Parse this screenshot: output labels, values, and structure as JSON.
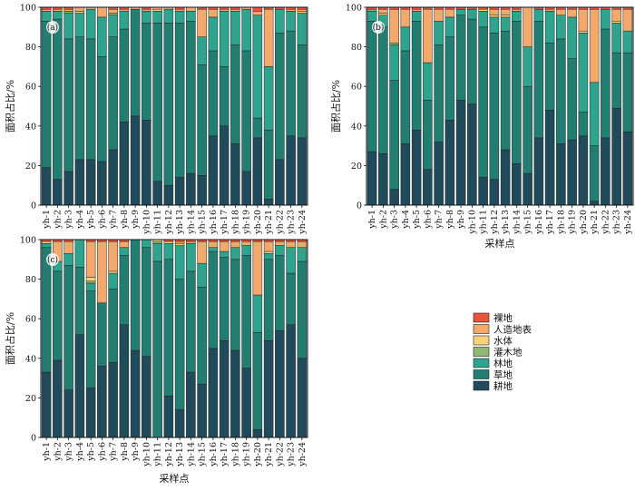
{
  "figure": {
    "panels_label": [
      "(a)",
      "(b)",
      "(c)"
    ]
  },
  "legend": {
    "items": [
      {
        "label": "裸地",
        "color": "#e8553a"
      },
      {
        "label": "人造地表",
        "color": "#f3a86c"
      },
      {
        "label": "水体",
        "color": "#f6d27a"
      },
      {
        "label": "灌木地",
        "color": "#8fb873"
      },
      {
        "label": "林地",
        "color": "#2ea38d"
      },
      {
        "label": "草地",
        "color": "#237e72"
      },
      {
        "label": "耕地",
        "color": "#1f4b5a"
      }
    ]
  },
  "chart_data": [
    {
      "type": "bar",
      "stacked": true,
      "panel": "(a)",
      "categories": [
        "yh-1",
        "yh-2",
        "yh-3",
        "yh-4",
        "yh-5",
        "yh-6",
        "yh-7",
        "yh-8",
        "yh-9",
        "yh-10",
        "yh-11",
        "yh-12",
        "yh-13",
        "yh-14",
        "yh-15",
        "yh-16",
        "yh-17",
        "yh-18",
        "yh-19",
        "yh-20",
        "yh-21",
        "yh-22",
        "yh-23",
        "yh-24"
      ],
      "ylabel": "面积占比/%",
      "xlabel": "",
      "ylim": [
        0,
        100
      ],
      "yticks": [
        0,
        20,
        40,
        60,
        80,
        100
      ],
      "series": [
        {
          "name": "耕地",
          "values": [
            19,
            13,
            17,
            23,
            23,
            22,
            28,
            42,
            45,
            43,
            12,
            10,
            14,
            16,
            15,
            35,
            40,
            31,
            17,
            34,
            3,
            23,
            35,
            34
          ]
        },
        {
          "name": "草地",
          "values": [
            74,
            81,
            67,
            62,
            61,
            53,
            57,
            47,
            54,
            49,
            80,
            82,
            78,
            77,
            56,
            43,
            30,
            50,
            61,
            10,
            35,
            64,
            53,
            47
          ]
        },
        {
          "name": "林地",
          "values": [
            5,
            4,
            13,
            12,
            15,
            20,
            11,
            9,
            0,
            6,
            6,
            7,
            6,
            5,
            14,
            17,
            28,
            17,
            21,
            52,
            32,
            12,
            10,
            16
          ]
        },
        {
          "name": "灌木地",
          "values": [
            0,
            0,
            1,
            0,
            0,
            0,
            1,
            0,
            0,
            0,
            0,
            0,
            0,
            0,
            0,
            0,
            0,
            0,
            0,
            0,
            0,
            0,
            0,
            0
          ]
        },
        {
          "name": "水体",
          "values": [
            0,
            0,
            0,
            1,
            0,
            0,
            0,
            0,
            0,
            0,
            1,
            0,
            0,
            0,
            0,
            0,
            0,
            0,
            0,
            0,
            0,
            0,
            0,
            1
          ]
        },
        {
          "name": "人造地表",
          "values": [
            1,
            1,
            1,
            2,
            1,
            5,
            2,
            1,
            1,
            1,
            1,
            1,
            1,
            2,
            14,
            4,
            1,
            1,
            1,
            2,
            29,
            0,
            1,
            1
          ]
        },
        {
          "name": "裸地",
          "values": [
            1,
            1,
            1,
            0,
            0,
            0,
            1,
            1,
            0,
            1,
            0,
            0,
            1,
            0,
            1,
            1,
            1,
            1,
            0,
            2,
            1,
            1,
            1,
            1
          ]
        }
      ]
    },
    {
      "type": "bar",
      "stacked": true,
      "panel": "(b)",
      "categories": [
        "yh-1",
        "yh-2",
        "yh-3",
        "yh-4",
        "yh-5",
        "yh-6",
        "yh-7",
        "yh-8",
        "yh-9",
        "yh-10",
        "yh-11",
        "yh-12",
        "yh-13",
        "yh-14",
        "yh-15",
        "yh-16",
        "yh-17",
        "yh-18",
        "yh-19",
        "yh-20",
        "yh-21",
        "yh-22",
        "yh-23",
        "yh-24"
      ],
      "ylabel": "面积占比/%",
      "xlabel": "采样点",
      "ylim": [
        0,
        100
      ],
      "yticks": [
        0,
        20,
        40,
        60,
        80,
        100
      ],
      "series": [
        {
          "name": "耕地",
          "values": [
            27,
            26,
            8,
            31,
            38,
            18,
            32,
            43,
            53,
            51,
            14,
            13,
            28,
            21,
            16,
            34,
            48,
            31,
            33,
            35,
            2,
            34,
            49,
            37
          ]
        },
        {
          "name": "草地",
          "values": [
            66,
            64,
            55,
            47,
            55,
            35,
            49,
            42,
            43,
            43,
            76,
            74,
            60,
            72,
            44,
            59,
            34,
            53,
            41,
            12,
            28,
            55,
            28,
            40
          ]
        },
        {
          "name": "林地",
          "values": [
            5,
            6,
            18,
            12,
            5,
            19,
            12,
            10,
            3,
            5,
            8,
            8,
            7,
            5,
            20,
            6,
            16,
            12,
            21,
            40,
            32,
            10,
            15,
            11
          ]
        },
        {
          "name": "灌木地",
          "values": [
            1,
            0,
            1,
            0,
            0,
            0,
            0,
            0,
            0,
            0,
            0,
            0,
            0,
            0,
            0,
            0,
            0,
            0,
            0,
            0,
            0,
            0,
            0,
            0
          ]
        },
        {
          "name": "水体",
          "values": [
            0,
            1,
            0,
            0,
            0,
            0,
            0,
            0,
            0,
            0,
            1,
            1,
            1,
            0,
            0,
            0,
            0,
            0,
            0,
            1,
            0,
            0,
            1,
            0
          ]
        },
        {
          "name": "人造地表",
          "values": [
            0,
            2,
            17,
            9,
            1,
            27,
            6,
            4,
            0,
            0,
            0,
            3,
            3,
            1,
            20,
            0,
            1,
            3,
            4,
            11,
            37,
            0,
            6,
            11
          ]
        },
        {
          "name": "裸地",
          "values": [
            1,
            1,
            1,
            1,
            1,
            1,
            1,
            1,
            1,
            1,
            1,
            1,
            1,
            1,
            0,
            1,
            1,
            1,
            1,
            1,
            1,
            1,
            1,
            1
          ]
        }
      ]
    },
    {
      "type": "bar",
      "stacked": true,
      "panel": "(c)",
      "categories": [
        "yh-1",
        "yh-2",
        "yh-3",
        "yh-4",
        "yh-5",
        "yh-6",
        "yh-7",
        "yh-8",
        "yh-9",
        "yh-10",
        "yh-11",
        "yh-12",
        "yh-13",
        "yh-14",
        "yh-15",
        "yh-16",
        "yh-17",
        "yh-18",
        "yh-19",
        "yh-20",
        "yh-21",
        "yh-22",
        "yh-23",
        "yh-24"
      ],
      "ylabel": "面积占比/%",
      "xlabel": "采样点",
      "ylim": [
        0,
        100
      ],
      "yticks": [
        0,
        20,
        40,
        60,
        80,
        100
      ],
      "series": [
        {
          "name": "耕地",
          "values": [
            33,
            39,
            24,
            52,
            25,
            36,
            38,
            57,
            44,
            41,
            0,
            21,
            14,
            33,
            27,
            45,
            49,
            44,
            35,
            4,
            49,
            54,
            57,
            40
          ]
        },
        {
          "name": "草地",
          "values": [
            63,
            45,
            63,
            34,
            49,
            32,
            37,
            35,
            56,
            55,
            89,
            69,
            66,
            51,
            49,
            49,
            42,
            46,
            57,
            49,
            41,
            38,
            26,
            49
          ]
        },
        {
          "name": "林地",
          "values": [
            2,
            5,
            6,
            14,
            4,
            0,
            8,
            4,
            0,
            4,
            9,
            8,
            17,
            14,
            12,
            2,
            3,
            6,
            5,
            19,
            3,
            5,
            13,
            7
          ]
        },
        {
          "name": "灌木地",
          "values": [
            0,
            0,
            0,
            0,
            1,
            0,
            0,
            0,
            0,
            0,
            1,
            0,
            0,
            0,
            0,
            0,
            0,
            0,
            0,
            0,
            0,
            0,
            0,
            0
          ]
        },
        {
          "name": "水体",
          "values": [
            1,
            0,
            0,
            0,
            2,
            0,
            1,
            0,
            0,
            0,
            1,
            1,
            1,
            0,
            0,
            0,
            0,
            0,
            0,
            0,
            1,
            0,
            0,
            0
          ]
        },
        {
          "name": "人造地表",
          "values": [
            0,
            10,
            6,
            0,
            18,
            31,
            15,
            3,
            0,
            0,
            0,
            0,
            1,
            1,
            11,
            3,
            5,
            3,
            2,
            27,
            5,
            2,
            3,
            3
          ]
        },
        {
          "name": "裸地",
          "values": [
            1,
            1,
            1,
            0,
            1,
            1,
            1,
            1,
            0,
            0,
            0,
            1,
            1,
            1,
            1,
            1,
            1,
            1,
            1,
            1,
            1,
            1,
            1,
            1
          ]
        }
      ]
    }
  ]
}
